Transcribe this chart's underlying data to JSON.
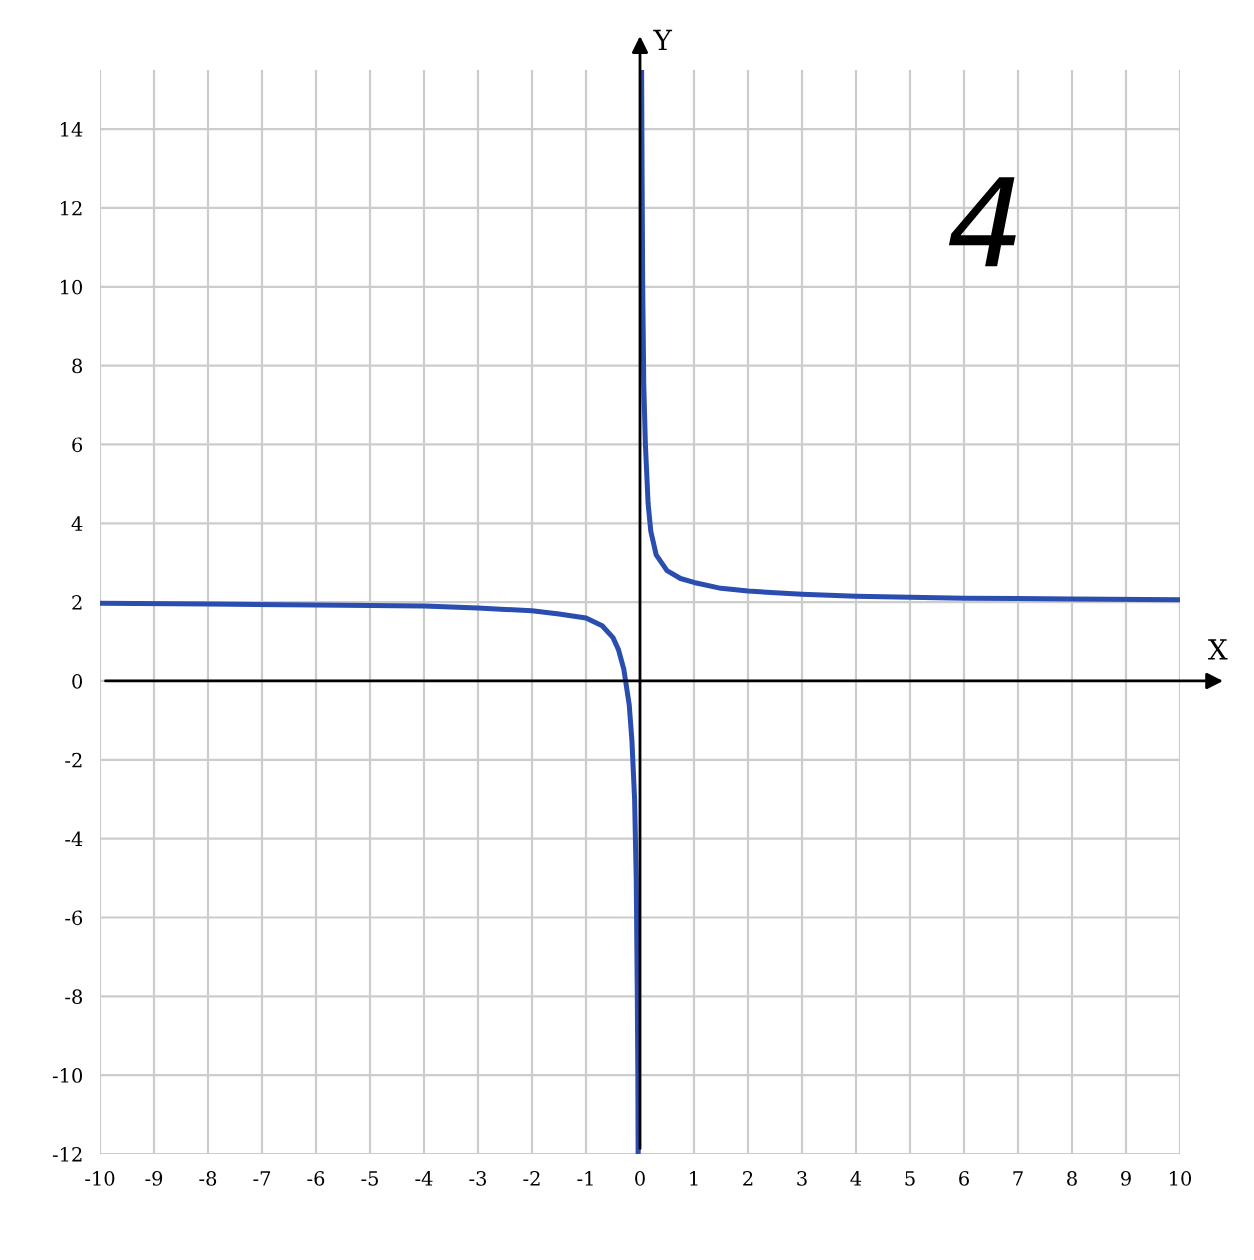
{
  "chart_data": {
    "type": "line",
    "xlabel": "X",
    "ylabel": "Y",
    "series": [
      {
        "color": "#2a4db0",
        "x": [
          -10,
          -8,
          -6,
          -4,
          -3,
          -2,
          -1.5,
          -1,
          -0.7,
          -0.5,
          -0.4,
          -0.3,
          -0.2,
          -0.15,
          -0.1,
          -0.07,
          -0.05,
          -0.04,
          -0.035
        ],
        "values": [
          1.97,
          1.95,
          1.93,
          1.9,
          1.85,
          1.78,
          1.7,
          1.6,
          1.4,
          1.1,
          0.8,
          0.3,
          -0.6,
          -1.5,
          -3,
          -5,
          -8,
          -10,
          -12
        ]
      },
      {
        "color": "#2a4db0",
        "x": [
          0.03,
          0.04,
          0.05,
          0.07,
          0.1,
          0.15,
          0.2,
          0.3,
          0.5,
          0.75,
          1,
          1.5,
          2,
          3,
          4,
          6,
          8,
          10
        ],
        "values": [
          15.5,
          12.5,
          10,
          7.5,
          6,
          4.5,
          3.8,
          3.2,
          2.8,
          2.6,
          2.5,
          2.35,
          2.28,
          2.2,
          2.15,
          2.1,
          2.08,
          2.06
        ]
      }
    ],
    "xlim": [
      -10,
      10
    ],
    "ylim": [
      -12,
      15.5
    ],
    "xticks": [
      -10,
      -9,
      -8,
      -7,
      -6,
      -5,
      -4,
      -3,
      -2,
      -1,
      0,
      1,
      2,
      3,
      4,
      5,
      6,
      7,
      8,
      9,
      10
    ],
    "yticks": [
      -12,
      -10,
      -8,
      -6,
      -4,
      -2,
      0,
      2,
      4,
      6,
      8,
      10,
      12,
      14
    ],
    "grid": true,
    "annotations": [
      "4"
    ]
  }
}
